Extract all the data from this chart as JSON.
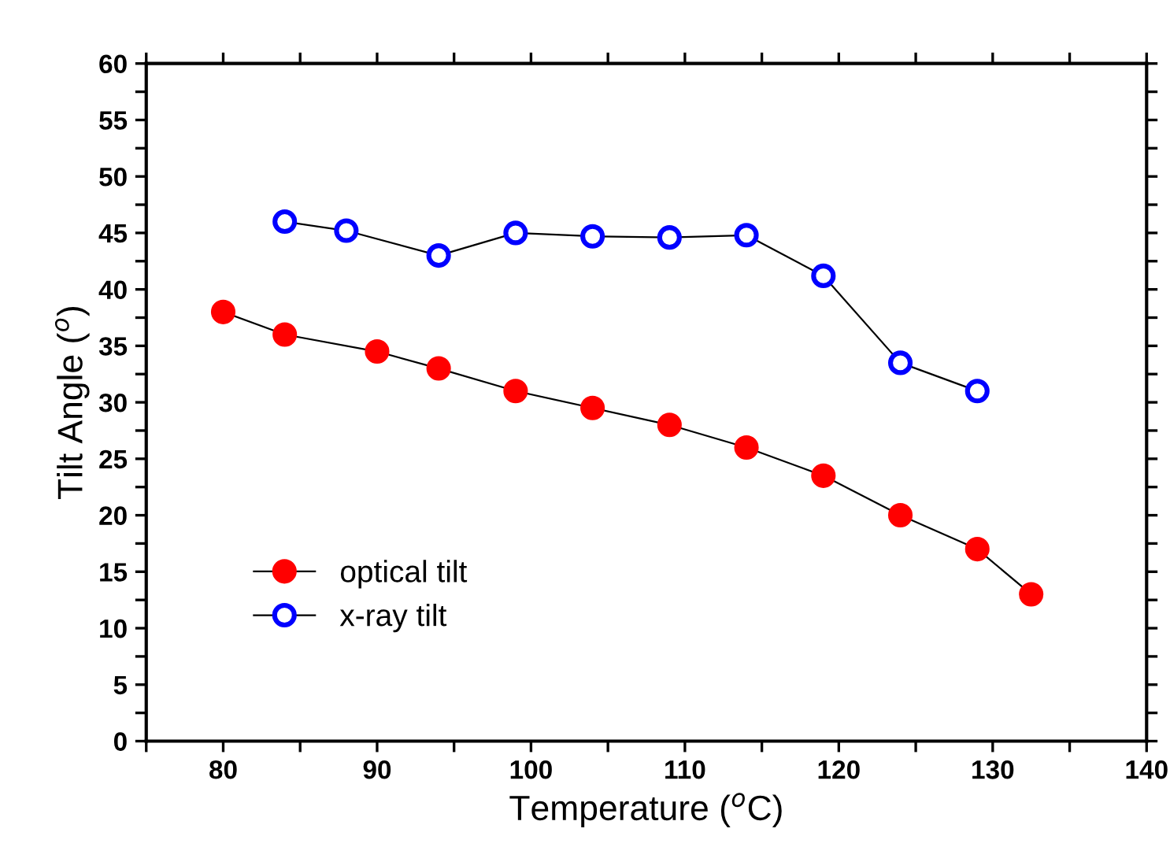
{
  "chart_data": {
    "type": "line",
    "xlabel": "Temperature ($^{o}$C)",
    "ylabel": "Tilt Angle ($^{o}$)",
    "xlim": [
      75,
      140
    ],
    "ylim": [
      0,
      60
    ],
    "xticks": [
      {
        "value": 75,
        "label": null
      },
      80,
      {
        "value": 85,
        "label": null
      },
      90,
      {
        "value": 95,
        "label": null
      },
      100,
      {
        "value": 105,
        "label": null
      },
      110,
      {
        "value": 115,
        "label": null
      },
      120,
      {
        "value": 125,
        "label": null
      },
      130,
      {
        "value": 135,
        "label": null
      },
      140
    ],
    "yticks": [
      0,
      {
        "value": 2.5,
        "label": null
      },
      5,
      {
        "value": 7.5,
        "label": null
      },
      10,
      {
        "value": 12.5,
        "label": null
      },
      15,
      {
        "value": 17.5,
        "label": null
      },
      20,
      {
        "value": 22.5,
        "label": null
      },
      25,
      {
        "value": 27.5,
        "label": null
      },
      30,
      {
        "value": 32.5,
        "label": null
      },
      35,
      {
        "value": 37.5,
        "label": null
      },
      40,
      {
        "value": 42.5,
        "label": null
      },
      45,
      {
        "value": 47.5,
        "label": null
      },
      50,
      {
        "value": 52.5,
        "label": null
      },
      55,
      {
        "value": 57.5,
        "label": null
      },
      60
    ],
    "grid": false,
    "legend": "bottom left",
    "series": [
      {
        "name": "optical tilt",
        "color": "#ff0000",
        "marker": "circle",
        "x": [
          80,
          84,
          90,
          94,
          99,
          104,
          109,
          114,
          119,
          124,
          129,
          132.5
        ],
        "values": [
          38,
          36,
          34.5,
          33,
          31,
          29.5,
          28,
          26,
          23.5,
          20,
          17,
          13
        ]
      },
      {
        "name": "x-ray tilt",
        "color": "#0000ff",
        "marker": "circle",
        "x": [
          84,
          88,
          94,
          99,
          104,
          109,
          114,
          119,
          124,
          129
        ],
        "values": [
          46,
          45.2,
          43,
          45,
          44.7,
          44.6,
          44.8,
          41.2,
          33.5,
          31
        ]
      }
    ]
  }
}
